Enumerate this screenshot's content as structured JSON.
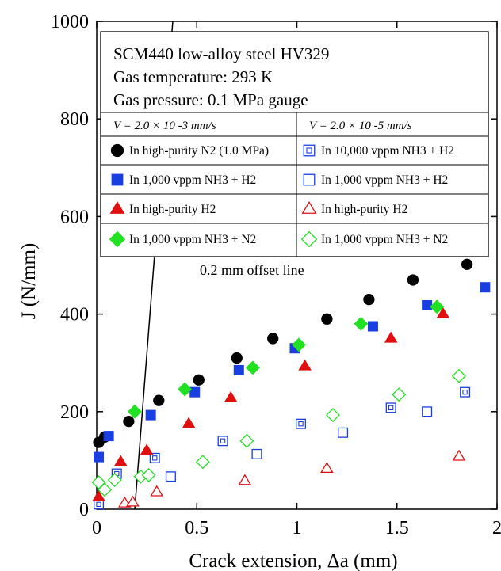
{
  "chart_data": {
    "type": "scatter",
    "xlabel": "Crack extension, Δa (mm)",
    "ylabel": "J (N/mm)",
    "xlim": [
      0,
      2.0
    ],
    "ylim": [
      0,
      1000
    ],
    "xticks": [
      0,
      0.5,
      1,
      1.5,
      2
    ],
    "yticks": [
      0,
      200,
      400,
      600,
      800,
      1000
    ],
    "xtick_labels": [
      "0",
      "0.5",
      "1",
      "1.5",
      "2"
    ],
    "ytick_labels": [
      "0",
      "200",
      "400",
      "600",
      "800",
      "1000"
    ],
    "grid": false,
    "legend_placement": "top-left inside",
    "legend_info": [
      "SCM440 low-alloy steel HV329",
      "Gas temperature: 293 K",
      "Gas pressure: 0.1 MPa gauge"
    ],
    "legend_columns": [
      "V = 2.0 × 10 -3 mm/s",
      "V = 2.0 × 10 -5 mm/s"
    ],
    "offset_line": {
      "label": "0.2 mm offset line",
      "points": [
        [
          0.19,
          0
        ],
        [
          0.38,
          1000
        ]
      ]
    },
    "series": [
      {
        "name": "In high-purity N2 (1.0 MPa)",
        "marker": "circle-filled",
        "color": "#000000",
        "column": 0,
        "x": [
          0.01,
          0.04,
          0.16,
          0.31,
          0.51,
          0.7,
          0.88,
          1.15,
          1.36,
          1.58,
          1.85
        ],
        "y": [
          137,
          148,
          180,
          223,
          265,
          310,
          350,
          390,
          430,
          470,
          502
        ]
      },
      {
        "name": "In 10,000 vppm NH3 + H2",
        "marker": "square-dotted",
        "color": "#1a3fe0",
        "column": 1,
        "x": [
          0.01,
          0.1,
          0.29,
          0.63,
          1.02,
          1.47,
          1.84
        ],
        "y": [
          10,
          73,
          105,
          140,
          175,
          208,
          240
        ]
      },
      {
        "name": "In 1,000 vppm NH3 + H2",
        "marker": "square-filled",
        "color": "#1a3fe0",
        "column": 0,
        "x": [
          0.01,
          0.06,
          0.27,
          0.49,
          0.71,
          0.99,
          1.38,
          1.65,
          1.94
        ],
        "y": [
          107,
          150,
          193,
          240,
          285,
          330,
          375,
          418,
          455
        ]
      },
      {
        "name": "In 1,000 vppm NH3 + H2",
        "marker": "square-open",
        "color": "#1a3fe0",
        "column": 1,
        "x": [
          0.37,
          0.8,
          1.23,
          1.65
        ],
        "y": [
          67,
          113,
          157,
          200
        ]
      },
      {
        "name": "In high-purity H2",
        "marker": "triangle-filled",
        "color": "#e01010",
        "column": 0,
        "x": [
          0.01,
          0.12,
          0.25,
          0.46,
          0.67,
          1.04,
          1.47,
          1.73
        ],
        "y": [
          25,
          97,
          120,
          175,
          228,
          293,
          350,
          400
        ]
      },
      {
        "name": "In high-purity H2",
        "marker": "triangle-open",
        "color": "#e01010",
        "column": 1,
        "x": [
          0.14,
          0.18,
          0.3,
          0.74,
          1.15,
          1.81
        ],
        "y": [
          12,
          14,
          35,
          58,
          83,
          108
        ]
      },
      {
        "name": "In 1,000 vppm NH3 + N2",
        "marker": "diamond-filled",
        "color": "#22e022",
        "column": 0,
        "x": [
          0.19,
          0.44,
          0.78,
          1.01,
          1.32,
          1.7
        ],
        "y": [
          200,
          246,
          290,
          337,
          380,
          415
        ]
      },
      {
        "name": "In 1,000 vppm NH3 + N2",
        "marker": "diamond-open",
        "color": "#22e022",
        "column": 1,
        "x": [
          0.01,
          0.04,
          0.09,
          0.22,
          0.26,
          0.53,
          0.75,
          1.18,
          1.51,
          1.81
        ],
        "y": [
          55,
          40,
          60,
          67,
          70,
          97,
          140,
          193,
          235,
          273
        ]
      }
    ]
  }
}
